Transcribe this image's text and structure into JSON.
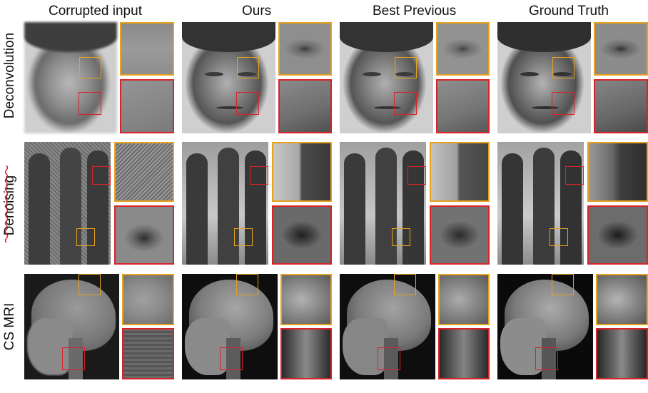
{
  "columns": [
    "Corrupted input",
    "Ours",
    "Best Previous",
    "Ground Truth"
  ],
  "rows": [
    "Deconvolution",
    "Denoising",
    "CS MRI"
  ],
  "colors": {
    "orange": "#e8a21e",
    "red": "#d8232a"
  }
}
